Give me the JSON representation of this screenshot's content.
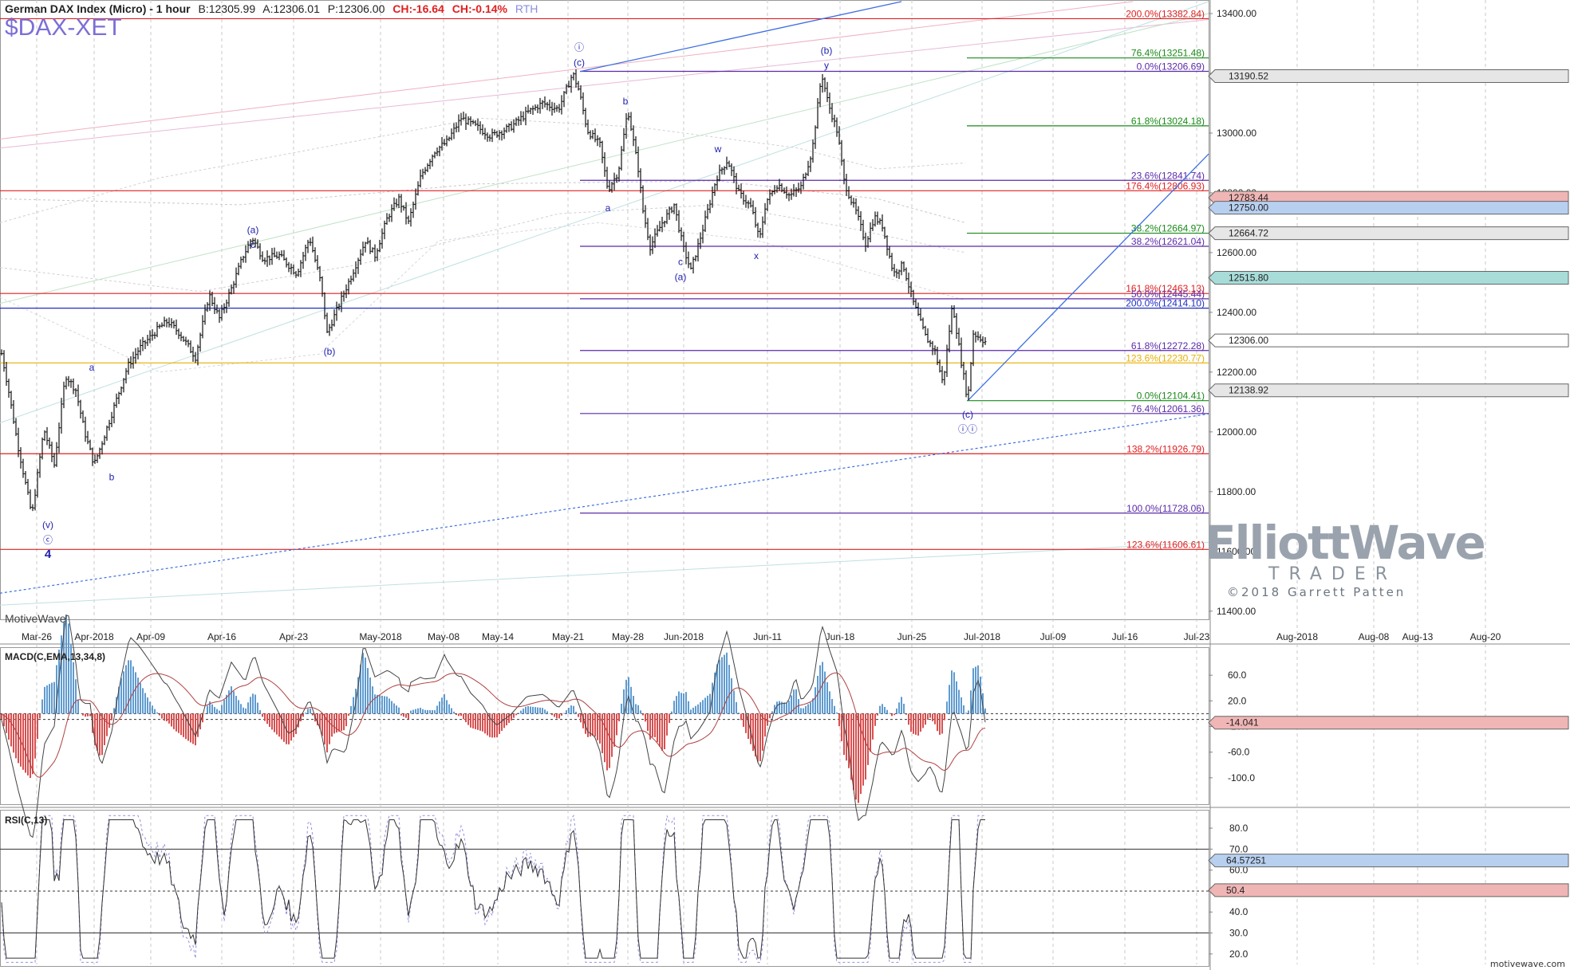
{
  "header": {
    "title": "German DAX Index (Micro) - 1 hour",
    "bid": "B:12305.99",
    "ask": "A:12306.01",
    "price": "P:12306.00",
    "change": "CH:-16.64",
    "change_pct": "CH:-0.14%",
    "session": "RTH",
    "symbol": "$DAX-XET"
  },
  "credit": "MotiveWave",
  "website": "motivewave.com",
  "logo": {
    "line1": "ElliottWave",
    "line2": "TRADER",
    "line3": "©2018 Garrett Patten"
  },
  "colors": {
    "up": "#000000",
    "fib_red": "#e02020",
    "fib_green": "#1a8a1a",
    "fib_purple": "#5b2aa8",
    "fib_blue": "#2030c0",
    "trend": "#4a78d8",
    "label": "#2020b0"
  },
  "chart_data": [
    {
      "type": "ohlc",
      "title": "German DAX Index (Micro) - 1 hour",
      "x_axis_labels": [
        "Mar-26",
        "Apr-2018",
        "Apr-09",
        "Apr-16",
        "Apr-23",
        "May-2018",
        "May-08",
        "May-14",
        "May-21",
        "May-28",
        "Jun-2018",
        "Jun-11",
        "Jun-18",
        "Jun-25",
        "Jul-2018",
        "Jul-09",
        "Jul-16",
        "Jul-23",
        "Aug-2018",
        "Aug-08",
        "Aug-13",
        "Aug-20"
      ],
      "y_ticks": [
        11400,
        11600,
        11800,
        12000,
        12200,
        12400,
        12600,
        12800,
        13000,
        13200,
        13400
      ],
      "ylim": [
        11370,
        13440
      ],
      "price_path": [
        [
          0,
          12290
        ],
        [
          10,
          12150
        ],
        [
          22,
          11960
        ],
        [
          40,
          11720
        ],
        [
          55,
          12010
        ],
        [
          68,
          11890
        ],
        [
          82,
          12190
        ],
        [
          95,
          12140
        ],
        [
          106,
          12000
        ],
        [
          118,
          11890
        ],
        [
          126,
          11950
        ],
        [
          140,
          12060
        ],
        [
          160,
          12220
        ],
        [
          175,
          12280
        ],
        [
          200,
          12350
        ],
        [
          210,
          12370
        ],
        [
          225,
          12330
        ],
        [
          245,
          12250
        ],
        [
          262,
          12460
        ],
        [
          275,
          12380
        ],
        [
          290,
          12480
        ],
        [
          305,
          12590
        ],
        [
          316,
          12650
        ],
        [
          330,
          12580
        ],
        [
          350,
          12590
        ],
        [
          372,
          12530
        ],
        [
          388,
          12650
        ],
        [
          402,
          12500
        ],
        [
          410,
          12330
        ],
        [
          424,
          12420
        ],
        [
          440,
          12520
        ],
        [
          458,
          12640
        ],
        [
          470,
          12590
        ],
        [
          486,
          12720
        ],
        [
          500,
          12780
        ],
        [
          512,
          12700
        ],
        [
          528,
          12860
        ],
        [
          545,
          12940
        ],
        [
          560,
          12970
        ],
        [
          578,
          13050
        ],
        [
          598,
          13020
        ],
        [
          615,
          12990
        ],
        [
          640,
          13020
        ],
        [
          662,
          13070
        ],
        [
          680,
          13100
        ],
        [
          700,
          13080
        ],
        [
          718,
          13200
        ],
        [
          726,
          13140
        ],
        [
          736,
          13010
        ],
        [
          752,
          12960
        ],
        [
          762,
          12810
        ],
        [
          775,
          12870
        ],
        [
          787,
          13080
        ],
        [
          800,
          12880
        ],
        [
          806,
          12740
        ],
        [
          815,
          12620
        ],
        [
          830,
          12700
        ],
        [
          845,
          12760
        ],
        [
          856,
          12620
        ],
        [
          866,
          12540
        ],
        [
          880,
          12670
        ],
        [
          898,
          12850
        ],
        [
          912,
          12910
        ],
        [
          926,
          12800
        ],
        [
          942,
          12750
        ],
        [
          952,
          12640
        ],
        [
          960,
          12770
        ],
        [
          975,
          12830
        ],
        [
          990,
          12790
        ],
        [
          1004,
          12820
        ],
        [
          1018,
          12940
        ],
        [
          1030,
          13200
        ],
        [
          1038,
          13100
        ],
        [
          1050,
          13000
        ],
        [
          1058,
          12840
        ],
        [
          1066,
          12780
        ],
        [
          1074,
          12730
        ],
        [
          1085,
          12630
        ],
        [
          1096,
          12720
        ],
        [
          1106,
          12690
        ],
        [
          1120,
          12530
        ],
        [
          1132,
          12560
        ],
        [
          1144,
          12440
        ],
        [
          1160,
          12320
        ],
        [
          1172,
          12270
        ],
        [
          1182,
          12160
        ],
        [
          1194,
          12430
        ],
        [
          1204,
          12250
        ],
        [
          1213,
          12104
        ],
        [
          1220,
          12330
        ],
        [
          1236,
          12300
        ]
      ],
      "wave_labels": [
        {
          "text": "a",
          "x": 115,
          "y": 12200,
          "pos": "above"
        },
        {
          "text": "b",
          "x": 140,
          "y": 11870,
          "pos": "below"
        },
        {
          "text": "(v)",
          "x": 60,
          "y": 11710,
          "pos": "below"
        },
        {
          "text": "ⓒ",
          "x": 60,
          "y": 11660,
          "pos": "below"
        },
        {
          "text": "4",
          "x": 60,
          "y": 11610,
          "pos": "below"
        },
        {
          "text": "(a)",
          "x": 317,
          "y": 12660,
          "pos": "above"
        },
        {
          "text": "c",
          "x": 317,
          "y": 12610,
          "pos": "above"
        },
        {
          "text": "(b)",
          "x": 413,
          "y": 12290,
          "pos": "below"
        },
        {
          "text": "ⓘ",
          "x": 726,
          "y": 13270,
          "pos": "above"
        },
        {
          "text": "(c)",
          "x": 726,
          "y": 13220,
          "pos": "above"
        },
        {
          "text": "b",
          "x": 784,
          "y": 13090,
          "pos": "above"
        },
        {
          "text": "a",
          "x": 762,
          "y": 12770,
          "pos": "below"
        },
        {
          "text": "w",
          "x": 900,
          "y": 12930,
          "pos": "above"
        },
        {
          "text": "c",
          "x": 853,
          "y": 12590,
          "pos": "below"
        },
        {
          "text": "(a)",
          "x": 853,
          "y": 12540,
          "pos": "below"
        },
        {
          "text": "x",
          "x": 948,
          "y": 12610,
          "pos": "below"
        },
        {
          "text": "(b)",
          "x": 1036,
          "y": 13260,
          "pos": "above"
        },
        {
          "text": "y",
          "x": 1036,
          "y": 13210,
          "pos": "above"
        },
        {
          "text": "(c)",
          "x": 1213,
          "y": 12080,
          "pos": "below"
        },
        {
          "text": "ⓘⓘ",
          "x": 1213,
          "y": 12030,
          "pos": "below"
        }
      ],
      "fib_levels": [
        {
          "label": "200.0%(13382.84)",
          "value": 13382.84,
          "color": "red",
          "x0": 0
        },
        {
          "label": "76.4%(13251.48)",
          "value": 13251.48,
          "color": "green",
          "x0": 1212
        },
        {
          "label": "0.0%(13206.69)",
          "value": 13206.69,
          "color": "purple",
          "x0": 727
        },
        {
          "label": "61.8%(13024.18)",
          "value": 13024.18,
          "color": "green",
          "x0": 1212
        },
        {
          "label": "23.6%(12841.74)",
          "value": 12841.74,
          "color": "purple",
          "x0": 727
        },
        {
          "label": "176.4%(12806.93)",
          "value": 12806.93,
          "color": "red",
          "x0": 0
        },
        {
          "label": "38.2%(12664.97)",
          "value": 12664.97,
          "color": "green",
          "x0": 1212
        },
        {
          "label": "38.2%(12621.04)",
          "value": 12621.04,
          "color": "purple",
          "x0": 727
        },
        {
          "label": "161.8%(12463.13)",
          "value": 12463.13,
          "color": "red",
          "x0": 0
        },
        {
          "label": "50.0%(12445.44)",
          "value": 12445.44,
          "color": "purple",
          "x0": 727
        },
        {
          "label": "200.0%(12414.10)",
          "value": 12414.1,
          "color": "blue",
          "x0": 0
        },
        {
          "label": "61.8%(12272.28)",
          "value": 12272.28,
          "color": "purple",
          "x0": 727
        },
        {
          "label": "123.6%(12230.77)",
          "value": 12230.77,
          "color": "orange",
          "x0": 0
        },
        {
          "label": "0.0%(12104.41)",
          "value": 12104.41,
          "color": "green",
          "x0": 1212
        },
        {
          "label": "76.4%(12061.36)",
          "value": 12061.36,
          "color": "purple",
          "x0": 727
        },
        {
          "label": "138.2%(11926.79)",
          "value": 11926.79,
          "color": "red",
          "x0": 0
        },
        {
          "label": "100.0%(11728.06)",
          "value": 11728.06,
          "color": "purple",
          "x0": 727
        },
        {
          "label": "123.6%(11606.61)",
          "value": 11606.61,
          "color": "red",
          "x0": 0
        }
      ],
      "price_boxes": [
        {
          "label": "13190.52",
          "value": 13190.52,
          "style": "gray"
        },
        {
          "label": "12783.44",
          "value": 12783.44,
          "style": "red"
        },
        {
          "label": "12750.00",
          "value": 12750.0,
          "style": "blue"
        },
        {
          "label": "12664.72",
          "value": 12664.72,
          "style": "gray"
        },
        {
          "label": "12515.80",
          "value": 12515.8,
          "style": "teal"
        },
        {
          "label": "12306.00",
          "value": 12306.0,
          "style": "plain"
        },
        {
          "label": "12138.92",
          "value": 12138.92,
          "style": "gray"
        }
      ]
    },
    {
      "type": "line",
      "title": "MACD(C,EMA,13,34,8)",
      "y_ticks": [
        60,
        20,
        -20,
        -60,
        -100
      ],
      "ylim": [
        -140,
        100
      ],
      "value_box": "-14.041"
    },
    {
      "type": "line",
      "title": "RSI(C,13)",
      "y_ticks": [
        80,
        70,
        60,
        50,
        40,
        30,
        20
      ],
      "ylim": [
        15,
        88
      ],
      "value_boxes": [
        "64.57251",
        "50.4"
      ]
    }
  ]
}
